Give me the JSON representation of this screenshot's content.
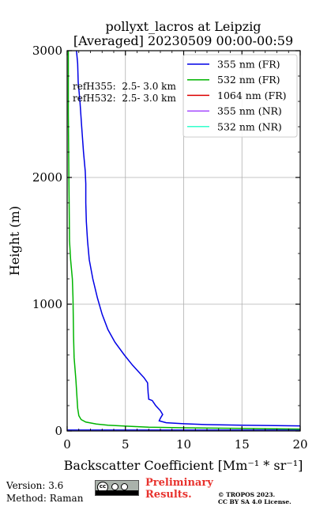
{
  "chart_data": {
    "type": "line",
    "title_line1": "pollyxt_lacros at Leipzig",
    "title_line2": "[Averaged] 20230509 00:00-00:59",
    "xlabel": "Backscatter Coefficient [Mm⁻¹ * sr⁻¹]",
    "ylabel": "Height (m)",
    "xlim": [
      0,
      20
    ],
    "ylim": [
      0,
      3000
    ],
    "x_ticks": [
      0,
      5,
      10,
      15,
      20
    ],
    "y_ticks": [
      0,
      1000,
      2000,
      3000
    ],
    "grid": true,
    "legend_position": "top-right",
    "annotations": [
      "refH355:  2.5- 3.0 km",
      "refH532:  2.5- 3.0 km"
    ],
    "series": [
      {
        "name": "355 nm (FR)",
        "color": "#0000e6",
        "points": [
          [
            20,
            40
          ],
          [
            15,
            45
          ],
          [
            12,
            50
          ],
          [
            10,
            57
          ],
          [
            8.5,
            65
          ],
          [
            7.9,
            80
          ],
          [
            8.0,
            100
          ],
          [
            8.2,
            130
          ],
          [
            8.0,
            160
          ],
          [
            7.6,
            200
          ],
          [
            7.3,
            240
          ],
          [
            7.0,
            250
          ],
          [
            6.95,
            300
          ],
          [
            6.9,
            380
          ],
          [
            6.6,
            420
          ],
          [
            6.2,
            460
          ],
          [
            5.6,
            520
          ],
          [
            4.9,
            600
          ],
          [
            4.1,
            700
          ],
          [
            3.5,
            800
          ],
          [
            3.0,
            920
          ],
          [
            2.6,
            1050
          ],
          [
            2.2,
            1200
          ],
          [
            1.9,
            1350
          ],
          [
            1.75,
            1500
          ],
          [
            1.65,
            1650
          ],
          [
            1.6,
            1800
          ],
          [
            1.6,
            1950
          ],
          [
            1.55,
            2050
          ],
          [
            1.4,
            2200
          ],
          [
            1.25,
            2400
          ],
          [
            1.1,
            2600
          ],
          [
            0.95,
            2750
          ],
          [
            0.9,
            2900
          ],
          [
            0.8,
            3000
          ]
        ]
      },
      {
        "name": "532 nm (FR)",
        "color": "#00b400",
        "points": [
          [
            20,
            15
          ],
          [
            15,
            20
          ],
          [
            10,
            25
          ],
          [
            7,
            30
          ],
          [
            5,
            38
          ],
          [
            3.5,
            45
          ],
          [
            2.5,
            55
          ],
          [
            1.6,
            70
          ],
          [
            1.2,
            90
          ],
          [
            1.0,
            120
          ],
          [
            0.9,
            180
          ],
          [
            0.85,
            260
          ],
          [
            0.75,
            400
          ],
          [
            0.6,
            580
          ],
          [
            0.55,
            750
          ],
          [
            0.5,
            1050
          ],
          [
            0.45,
            1200
          ],
          [
            0.3,
            1350
          ],
          [
            0.2,
            1500
          ],
          [
            0.15,
            2000
          ],
          [
            0.1,
            2500
          ],
          [
            0.1,
            3000
          ]
        ]
      },
      {
        "name": "1064 nm (FR)",
        "color": "#dc0000",
        "points": []
      },
      {
        "name": "355 nm (NR)",
        "color": "#a64dff",
        "points": []
      },
      {
        "name": "532 nm (NR)",
        "color": "#33ffcc",
        "points": []
      }
    ],
    "baseline": {
      "color": "#0000e6",
      "y": 8
    }
  },
  "footer": {
    "version": "Version: 3.6",
    "method": "Method: Raman",
    "cc_badge": "cc BY SA",
    "preliminary_line1": "Preliminary",
    "preliminary_line2": "Results.",
    "copyright_line1": "© TROPOS 2023.",
    "copyright_line2": "CC BY SA 4.0 License."
  }
}
